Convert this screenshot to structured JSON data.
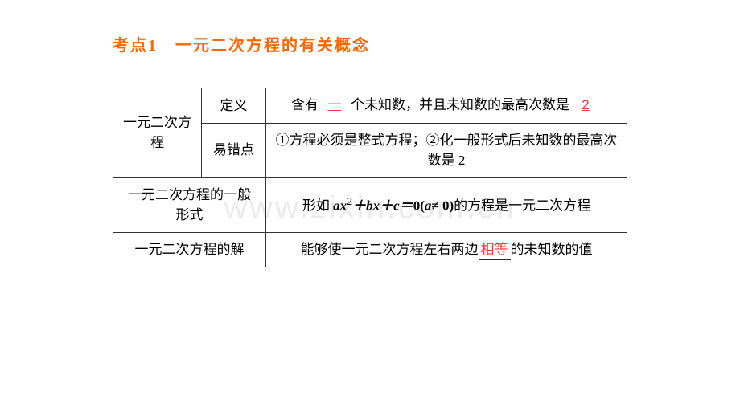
{
  "title": "考点1　一元二次方程的有关概念",
  "watermark": "www.zixin.com.cn",
  "table": {
    "rows": [
      {
        "label": "一元二次方程",
        "sub1": "定义",
        "cell1_parts": {
          "before1": "含有",
          "blank1": "一",
          "after1": "个未知数，并且未知数的最高次数是",
          "blank2": "2",
          "after2": ""
        },
        "sub2": "易错点",
        "cell2": "①方程必须是整式方程；②化一般形式后未知数的最高次数是 2"
      },
      {
        "label": "一元二次方程的一般形式",
        "cell_parts": {
          "before": "形如 ",
          "formula": "ax² + bx + c = 0 (a ≠ 0)",
          "after": "的方程是一元二次方程"
        }
      },
      {
        "label": "一元二次方程的解",
        "cell_parts": {
          "before": "能够使一元二次方程左右两边",
          "blank": "相等",
          "after": "的未知数的值"
        }
      }
    ]
  }
}
